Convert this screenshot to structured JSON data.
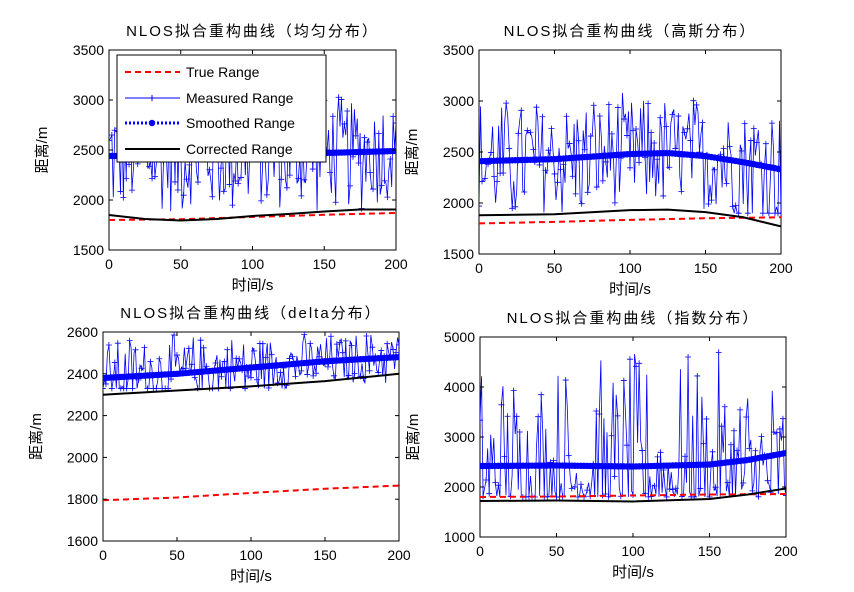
{
  "figure": {
    "background": "#ffffff"
  },
  "colors": {
    "true": "#ff0000",
    "measured": "#0000ff",
    "smoothed": "#0000ff",
    "corrected": "#000000"
  },
  "legend": {
    "entries": [
      "True Range",
      "Measured Range",
      "Smoothed Range",
      "Corrected Range"
    ]
  },
  "chart_data": [
    {
      "type": "line",
      "title": "NLOS拟合重构曲线（均匀分布）",
      "xlabel": "时间/s",
      "ylabel": "距离/m",
      "xlim": [
        0,
        200
      ],
      "ylim": [
        1500,
        3500
      ],
      "xticks": [
        0,
        50,
        100,
        150,
        200
      ],
      "yticks": [
        1500,
        2000,
        2500,
        3000,
        3500
      ],
      "legend": "top-left",
      "series": [
        {
          "name": "True Range",
          "x": [
            0,
            50,
            100,
            150,
            200
          ],
          "values": [
            1800,
            1808,
            1830,
            1852,
            1870
          ]
        },
        {
          "name": "Measured Range",
          "x": [
            0,
            200
          ],
          "range_band": [
            1850,
            3100
          ],
          "points": 200
        },
        {
          "name": "Smoothed Range",
          "x": [
            0,
            50,
            100,
            150,
            200
          ],
          "values": [
            2440,
            2445,
            2455,
            2470,
            2490
          ]
        },
        {
          "name": "Corrected Range",
          "x": [
            0,
            25,
            50,
            75,
            100,
            125,
            150,
            175,
            200
          ],
          "values": [
            1850,
            1810,
            1795,
            1810,
            1840,
            1860,
            1885,
            1905,
            1905
          ]
        }
      ]
    },
    {
      "type": "line",
      "title": "NLOS拟合重构曲线（高斯分布）",
      "xlabel": "时间/s",
      "ylabel": "距离/m",
      "xlim": [
        0,
        200
      ],
      "ylim": [
        1500,
        3500
      ],
      "xticks": [
        0,
        50,
        100,
        150,
        200
      ],
      "yticks": [
        1500,
        2000,
        2500,
        3000,
        3500
      ],
      "series": [
        {
          "name": "True Range",
          "x": [
            0,
            50,
            100,
            150,
            200
          ],
          "values": [
            1800,
            1815,
            1835,
            1850,
            1860
          ]
        },
        {
          "name": "Measured Range",
          "x": [
            0,
            200
          ],
          "range_band": [
            1900,
            3100
          ],
          "points": 200
        },
        {
          "name": "Smoothed Range",
          "x": [
            0,
            50,
            100,
            125,
            150,
            175,
            200
          ],
          "values": [
            2410,
            2430,
            2480,
            2490,
            2460,
            2400,
            2330
          ]
        },
        {
          "name": "Corrected Range",
          "x": [
            0,
            50,
            100,
            125,
            150,
            175,
            200
          ],
          "values": [
            1880,
            1890,
            1930,
            1935,
            1910,
            1860,
            1770
          ]
        }
      ]
    },
    {
      "type": "line",
      "title": "NLOS拟合重构曲线（delta分布）",
      "xlabel": "时间/s",
      "ylabel": "距离/m",
      "xlim": [
        0,
        200
      ],
      "ylim": [
        1600,
        2600
      ],
      "xticks": [
        0,
        50,
        100,
        150,
        200
      ],
      "yticks": [
        1600,
        1800,
        2000,
        2200,
        2400,
        2600
      ],
      "series": [
        {
          "name": "True Range",
          "x": [
            0,
            50,
            100,
            150,
            200
          ],
          "values": [
            1795,
            1808,
            1830,
            1850,
            1865
          ]
        },
        {
          "name": "Measured Range",
          "x": [
            0,
            200
          ],
          "range_band": [
            2330,
            2600
          ],
          "points": 200
        },
        {
          "name": "Smoothed Range",
          "x": [
            0,
            50,
            100,
            150,
            200
          ],
          "values": [
            2380,
            2400,
            2430,
            2460,
            2480
          ]
        },
        {
          "name": "Corrected Range",
          "x": [
            0,
            50,
            100,
            150,
            200
          ],
          "values": [
            2300,
            2320,
            2340,
            2365,
            2400
          ]
        }
      ]
    },
    {
      "type": "line",
      "title": "NLOS拟合重构曲线（指数分布）",
      "xlabel": "时间/s",
      "ylabel": "距离/m",
      "xlim": [
        0,
        200
      ],
      "ylim": [
        1000,
        5000
      ],
      "xticks": [
        0,
        50,
        100,
        150,
        200
      ],
      "yticks": [
        1000,
        2000,
        3000,
        4000,
        5000
      ],
      "series": [
        {
          "name": "True Range",
          "x": [
            0,
            50,
            100,
            150,
            200
          ],
          "values": [
            1800,
            1810,
            1830,
            1850,
            1860
          ]
        },
        {
          "name": "Measured Range",
          "x": [
            0,
            200
          ],
          "range_band": [
            1800,
            4700
          ],
          "points": 200
        },
        {
          "name": "Smoothed Range",
          "x": [
            0,
            50,
            100,
            150,
            175,
            200
          ],
          "values": [
            2420,
            2430,
            2410,
            2450,
            2540,
            2680
          ]
        },
        {
          "name": "Corrected Range",
          "x": [
            0,
            50,
            100,
            150,
            175,
            200
          ],
          "values": [
            1720,
            1730,
            1710,
            1760,
            1850,
            1970
          ]
        }
      ]
    }
  ]
}
